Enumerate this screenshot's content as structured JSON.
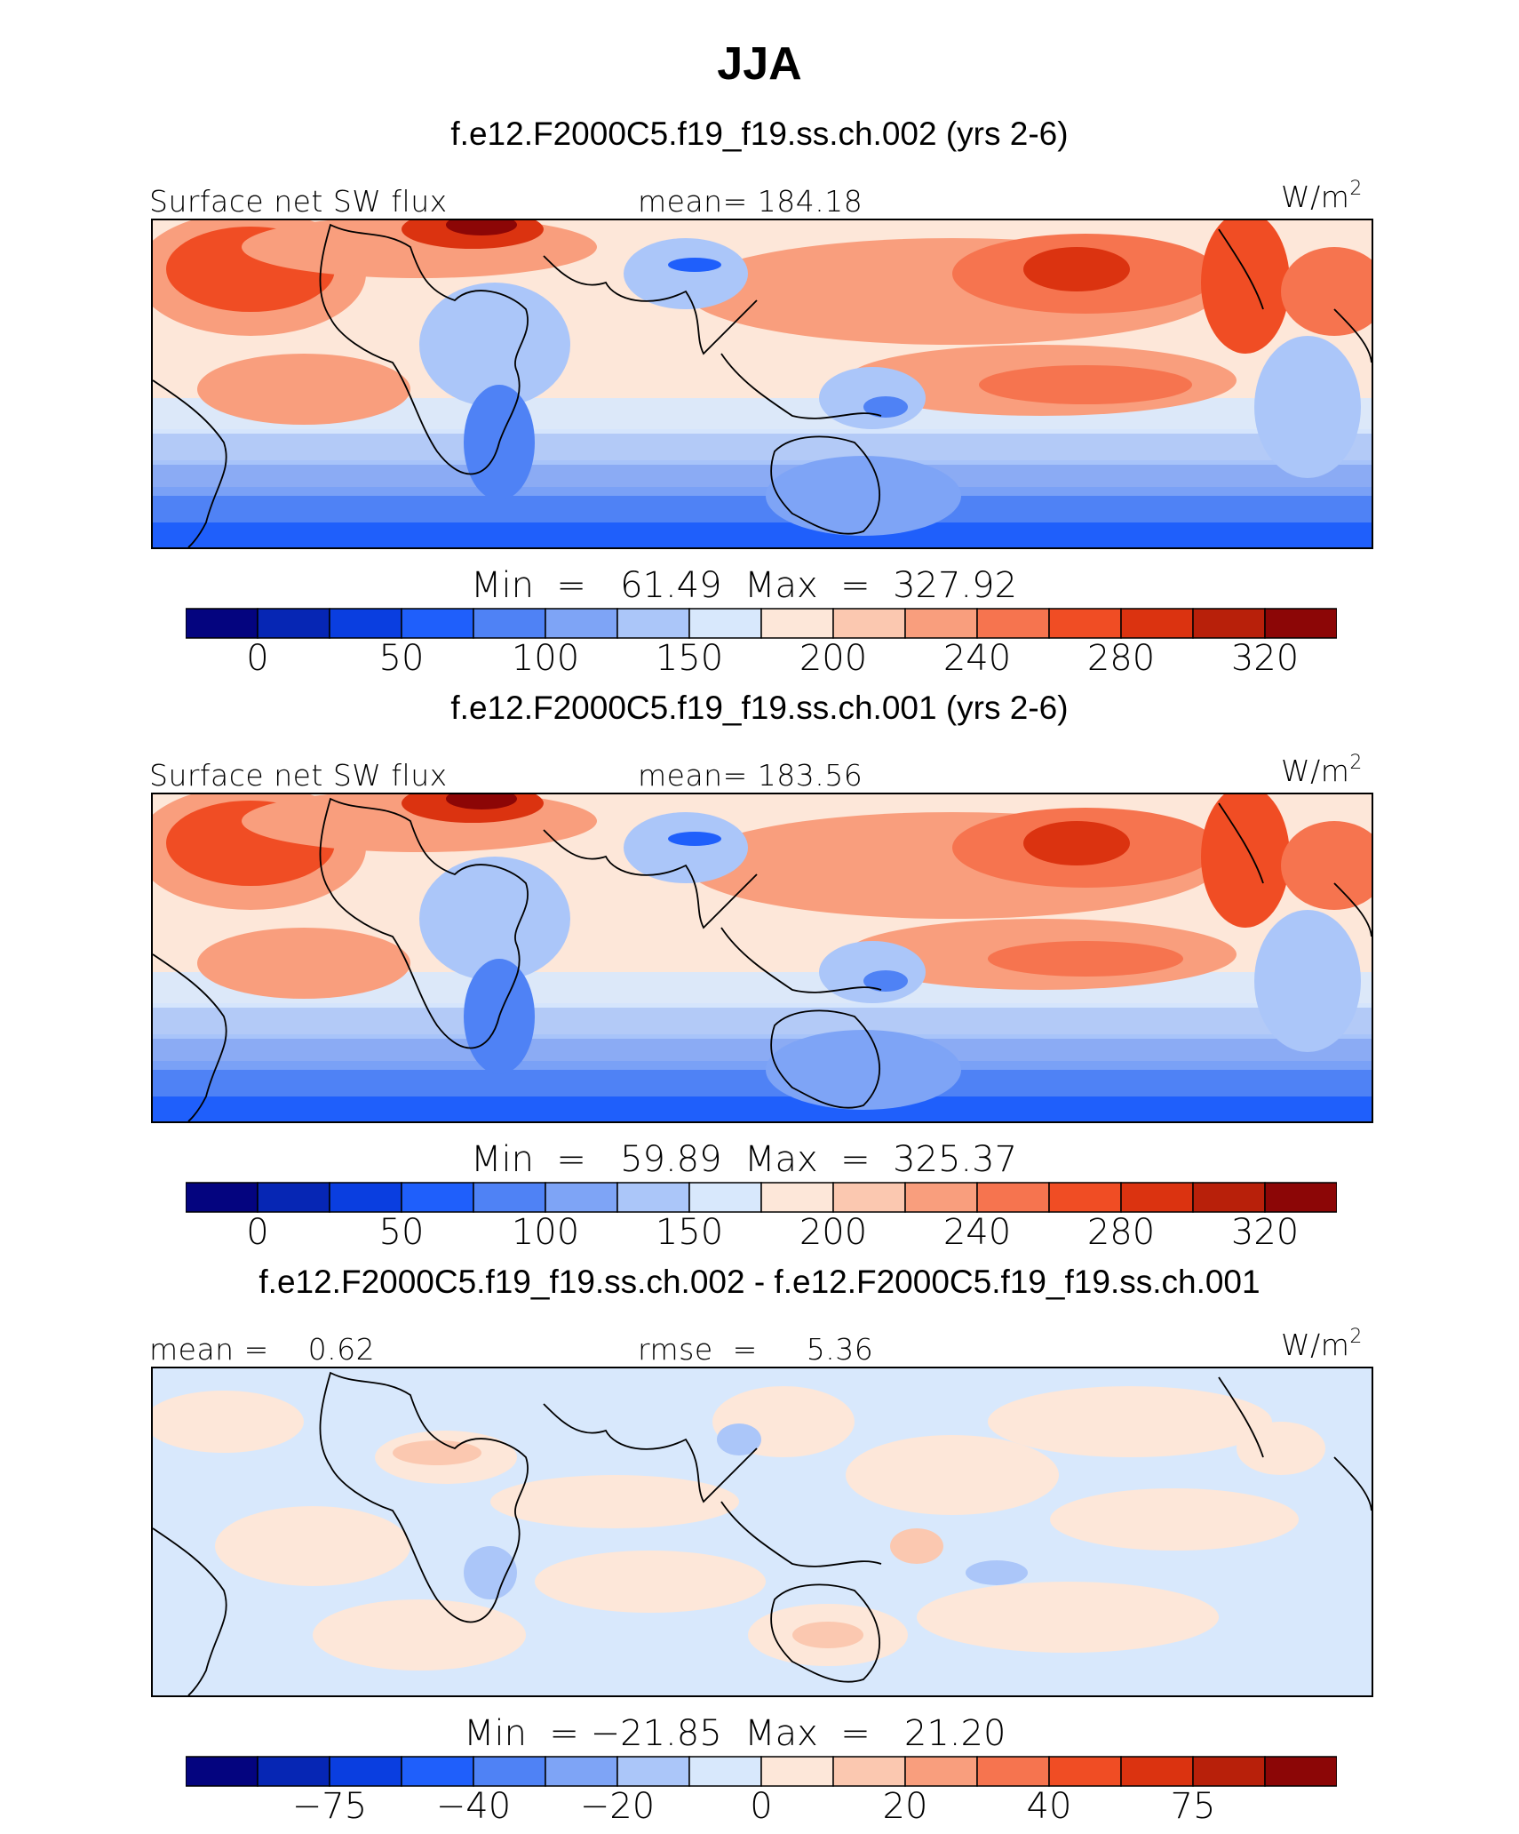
{
  "title": "JJA",
  "colors": {
    "palette": [
      "#04047f",
      "#0626b4",
      "#0a3ee0",
      "#1f5ffb",
      "#4f82f5",
      "#7ea4f6",
      "#abc6f9",
      "#d8e8fc",
      "#fde7d9",
      "#fbc8b0",
      "#f99e7d",
      "#f6744f",
      "#f04d24",
      "#db3310",
      "#b8200a",
      "#8c0606"
    ]
  },
  "panels": [
    {
      "id": "test",
      "title": "f.e12.F2000C5.f19_f19.ss.ch.002 (yrs 2-6)",
      "left_label": "Surface net SW flux",
      "center_label": "mean=  184.18",
      "units": "W/m",
      "units_sup": "2",
      "minmax": "Min  =   61.49  Max  =  327.92",
      "colorbar_ticks": [
        "0",
        "50",
        "100",
        "150",
        "200",
        "240",
        "280",
        "320"
      ]
    },
    {
      "id": "control",
      "title": "f.e12.F2000C5.f19_f19.ss.ch.001 (yrs 2-6)",
      "left_label": "Surface net SW flux",
      "center_label": "mean=  183.56",
      "units": "W/m",
      "units_sup": "2",
      "minmax": "Min  =   59.89  Max  =  325.37",
      "colorbar_ticks": [
        "0",
        "50",
        "100",
        "150",
        "200",
        "240",
        "280",
        "320"
      ]
    },
    {
      "id": "difference",
      "title": "f.e12.F2000C5.f19_f19.ss.ch.002 - f.e12.F2000C5.f19_f19.ss.ch.001",
      "left_label": "mean =    0.62",
      "center_label": "rmse  =     5.36",
      "units": "W/m",
      "units_sup": "2",
      "minmax": "Min  = −21.85  Max  =   21.20",
      "colorbar_ticks": [
        "−75",
        "−40",
        "−20",
        "0",
        "20",
        "40",
        "75"
      ]
    }
  ],
  "chart_data": [
    {
      "type": "heatmap",
      "title": "f.e12.F2000C5.f19_f19.ss.ch.002 (yrs 2-6)",
      "variable": "Surface net SW flux",
      "units": "W/m2",
      "mean": 184.18,
      "min": 61.49,
      "max": 327.92,
      "colorbar_levels": [
        0,
        25,
        50,
        75,
        100,
        125,
        150,
        175,
        200,
        220,
        240,
        260,
        280,
        300,
        320
      ],
      "colorbar_ticks": [
        0,
        50,
        100,
        150,
        200,
        240,
        280,
        320
      ]
    },
    {
      "type": "heatmap",
      "title": "f.e12.F2000C5.f19_f19.ss.ch.001 (yrs 2-6)",
      "variable": "Surface net SW flux",
      "units": "W/m2",
      "mean": 183.56,
      "min": 59.89,
      "max": 325.37,
      "colorbar_levels": [
        0,
        25,
        50,
        75,
        100,
        125,
        150,
        175,
        200,
        220,
        240,
        260,
        280,
        300,
        320
      ],
      "colorbar_ticks": [
        0,
        50,
        100,
        150,
        200,
        240,
        280,
        320
      ]
    },
    {
      "type": "heatmap",
      "title": "f.e12.F2000C5.f19_f19.ss.ch.002 - f.e12.F2000C5.f19_f19.ss.ch.001",
      "units": "W/m2",
      "mean": 0.62,
      "rmse": 5.36,
      "min": -21.85,
      "max": 21.2,
      "colorbar_levels": [
        -100,
        -75,
        -60,
        -40,
        -30,
        -20,
        -10,
        0,
        10,
        20,
        30,
        40,
        60,
        75,
        100
      ],
      "colorbar_ticks": [
        -75,
        -40,
        -20,
        0,
        20,
        40,
        75
      ]
    }
  ]
}
